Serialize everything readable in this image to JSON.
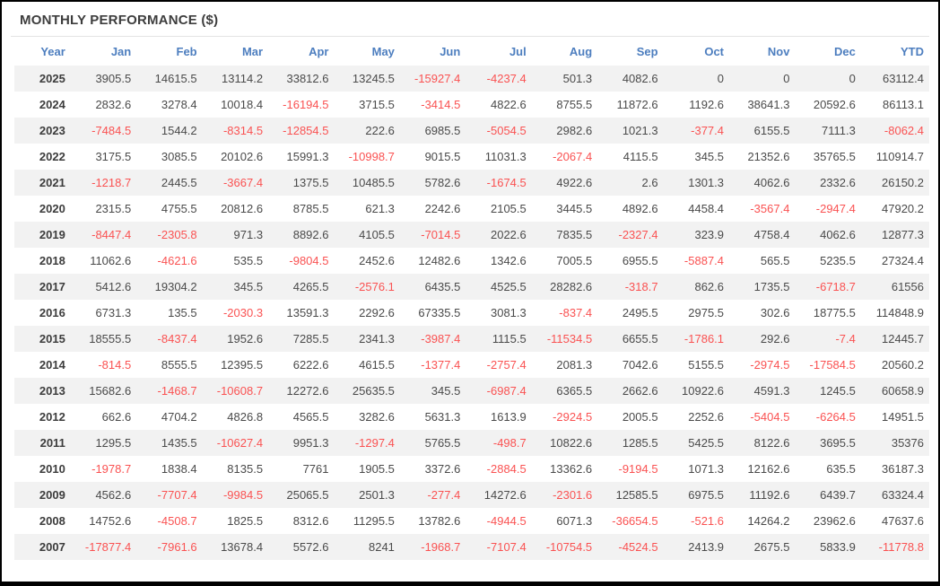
{
  "title": "MONTHLY PERFORMANCE ($)",
  "colors": {
    "header_blue": "#4d7ebf",
    "value_gray": "#4a4a4a",
    "negative_red": "#fa5252",
    "stripe_gray": "#f2f2f2",
    "title_color": "#3d3d3d",
    "frame_border": "#000000"
  },
  "chart_data": {
    "type": "table",
    "title": "MONTHLY PERFORMANCE ($)",
    "columns": [
      "Year",
      "Jan",
      "Feb",
      "Mar",
      "Apr",
      "May",
      "Jun",
      "Jul",
      "Aug",
      "Sep",
      "Oct",
      "Nov",
      "Dec",
      "YTD"
    ],
    "rows": [
      {
        "year": "2025",
        "values": [
          3905.5,
          14615.5,
          13114.2,
          33812.6,
          13245.5,
          -15927.4,
          -4237.4,
          501.3,
          4082.6,
          0,
          0,
          0,
          63112.4
        ]
      },
      {
        "year": "2024",
        "values": [
          2832.6,
          3278.4,
          10018.4,
          -16194.5,
          3715.5,
          -3414.5,
          4822.6,
          8755.5,
          11872.6,
          1192.6,
          38641.3,
          20592.6,
          86113.1
        ]
      },
      {
        "year": "2023",
        "values": [
          -7484.5,
          1544.2,
          -8314.5,
          -12854.5,
          222.6,
          6985.5,
          -5054.5,
          2982.6,
          1021.3,
          -377.4,
          6155.5,
          7111.3,
          -8062.4
        ]
      },
      {
        "year": "2022",
        "values": [
          3175.5,
          3085.5,
          20102.6,
          15991.3,
          -10998.7,
          9015.5,
          11031.3,
          -2067.4,
          4115.5,
          345.5,
          21352.6,
          35765.5,
          110914.7
        ]
      },
      {
        "year": "2021",
        "values": [
          -1218.7,
          2445.5,
          -3667.4,
          1375.5,
          10485.5,
          5782.6,
          -1674.5,
          4922.6,
          2.6,
          1301.3,
          4062.6,
          2332.6,
          26150.2
        ]
      },
      {
        "year": "2020",
        "values": [
          2315.5,
          4755.5,
          20812.6,
          8785.5,
          621.3,
          2242.6,
          2105.5,
          3445.5,
          4892.6,
          4458.4,
          -3567.4,
          -2947.4,
          47920.2
        ]
      },
      {
        "year": "2019",
        "values": [
          -8447.4,
          -2305.8,
          971.3,
          8892.6,
          4105.5,
          -7014.5,
          2022.6,
          7835.5,
          -2327.4,
          323.9,
          4758.4,
          4062.6,
          12877.3
        ]
      },
      {
        "year": "2018",
        "values": [
          11062.6,
          -4621.6,
          535.5,
          -9804.5,
          2452.6,
          12482.6,
          1342.6,
          7005.5,
          6955.5,
          -5887.4,
          565.5,
          5235.5,
          27324.4
        ]
      },
      {
        "year": "2017",
        "values": [
          5412.6,
          19304.2,
          345.5,
          4265.5,
          -2576.1,
          6435.5,
          4525.5,
          28282.6,
          -318.7,
          862.6,
          1735.5,
          -6718.7,
          61556
        ]
      },
      {
        "year": "2016",
        "values": [
          6731.3,
          135.5,
          -2030.3,
          13591.3,
          2292.6,
          67335.5,
          3081.3,
          -837.4,
          2495.5,
          2975.5,
          302.6,
          18775.5,
          114848.9
        ]
      },
      {
        "year": "2015",
        "values": [
          18555.5,
          -8437.4,
          1952.6,
          7285.5,
          2341.3,
          -3987.4,
          1115.5,
          -11534.5,
          6655.5,
          -1786.1,
          292.6,
          -7.4,
          12445.7
        ]
      },
      {
        "year": "2014",
        "values": [
          -814.5,
          8555.5,
          12395.5,
          6222.6,
          4615.5,
          -1377.4,
          -2757.4,
          2081.3,
          7042.6,
          5155.5,
          -2974.5,
          -17584.5,
          20560.2
        ]
      },
      {
        "year": "2013",
        "values": [
          15682.6,
          -1468.7,
          -10608.7,
          12272.6,
          25635.5,
          345.5,
          -6987.4,
          6365.5,
          2662.6,
          10922.6,
          4591.3,
          1245.5,
          60658.9
        ]
      },
      {
        "year": "2012",
        "values": [
          662.6,
          4704.2,
          4826.8,
          4565.5,
          3282.6,
          5631.3,
          1613.9,
          -2924.5,
          2005.5,
          2252.6,
          -5404.5,
          -6264.5,
          14951.5
        ]
      },
      {
        "year": "2011",
        "values": [
          1295.5,
          1435.5,
          -10627.4,
          9951.3,
          -1297.4,
          5765.5,
          -498.7,
          10822.6,
          1285.5,
          5425.5,
          8122.6,
          3695.5,
          35376
        ]
      },
      {
        "year": "2010",
        "values": [
          -1978.7,
          1838.4,
          8135.5,
          7761,
          1905.5,
          3372.6,
          -2884.5,
          13362.6,
          -9194.5,
          1071.3,
          12162.6,
          635.5,
          36187.3
        ]
      },
      {
        "year": "2009",
        "values": [
          4562.6,
          -7707.4,
          -9984.5,
          25065.5,
          2501.3,
          -277.4,
          14272.6,
          -2301.6,
          12585.5,
          6975.5,
          11192.6,
          6439.7,
          63324.4
        ]
      },
      {
        "year": "2008",
        "values": [
          14752.6,
          -4508.7,
          1825.5,
          8312.6,
          11295.5,
          13782.6,
          -4944.5,
          6071.3,
          -36654.5,
          -521.6,
          14264.2,
          23962.6,
          47637.6
        ]
      },
      {
        "year": "2007",
        "values": [
          -17877.4,
          -7961.6,
          13678.4,
          5572.6,
          8241,
          -1968.7,
          -7107.4,
          -10754.5,
          -4524.5,
          2413.9,
          2675.5,
          5833.9,
          -11778.8
        ]
      }
    ]
  }
}
